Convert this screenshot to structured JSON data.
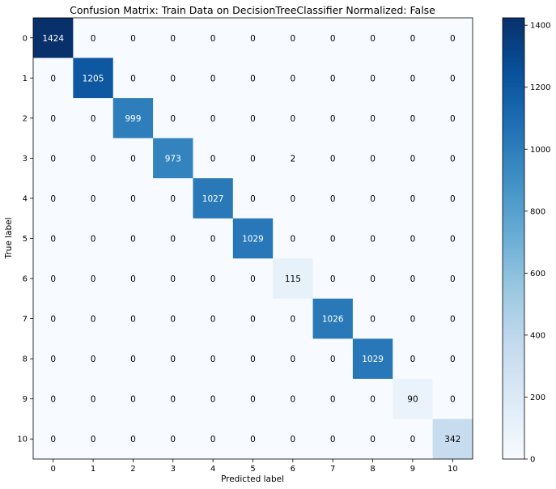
{
  "chart_data": {
    "type": "heatmap",
    "title": "Confusion Matrix: Train Data on DecisionTreeClassifier Normalized: False",
    "xlabel": "Predicted label",
    "ylabel": "True label",
    "x_ticks": [
      "0",
      "1",
      "2",
      "3",
      "4",
      "5",
      "6",
      "7",
      "8",
      "9",
      "10"
    ],
    "y_ticks": [
      "0",
      "1",
      "2",
      "3",
      "4",
      "5",
      "6",
      "7",
      "8",
      "9",
      "10"
    ],
    "matrix": [
      [
        1424,
        0,
        0,
        0,
        0,
        0,
        0,
        0,
        0,
        0,
        0
      ],
      [
        0,
        1205,
        0,
        0,
        0,
        0,
        0,
        0,
        0,
        0,
        0
      ],
      [
        0,
        0,
        999,
        0,
        0,
        0,
        0,
        0,
        0,
        0,
        0
      ],
      [
        0,
        0,
        0,
        973,
        0,
        0,
        2,
        0,
        0,
        0,
        0
      ],
      [
        0,
        0,
        0,
        0,
        1027,
        0,
        0,
        0,
        0,
        0,
        0
      ],
      [
        0,
        0,
        0,
        0,
        0,
        1029,
        0,
        0,
        0,
        0,
        0
      ],
      [
        0,
        0,
        0,
        0,
        0,
        0,
        115,
        0,
        0,
        0,
        0
      ],
      [
        0,
        0,
        0,
        0,
        0,
        0,
        0,
        1026,
        0,
        0,
        0
      ],
      [
        0,
        0,
        0,
        0,
        0,
        0,
        0,
        0,
        1029,
        0,
        0
      ],
      [
        0,
        0,
        0,
        0,
        0,
        0,
        0,
        0,
        0,
        90,
        0
      ],
      [
        0,
        0,
        0,
        0,
        0,
        0,
        0,
        0,
        0,
        0,
        342
      ]
    ],
    "colorbar": {
      "colormap": "Blues",
      "range": [
        0,
        1424
      ],
      "ticks": [
        0,
        200,
        400,
        600,
        800,
        1000,
        1200,
        1400
      ]
    },
    "grid": false
  }
}
